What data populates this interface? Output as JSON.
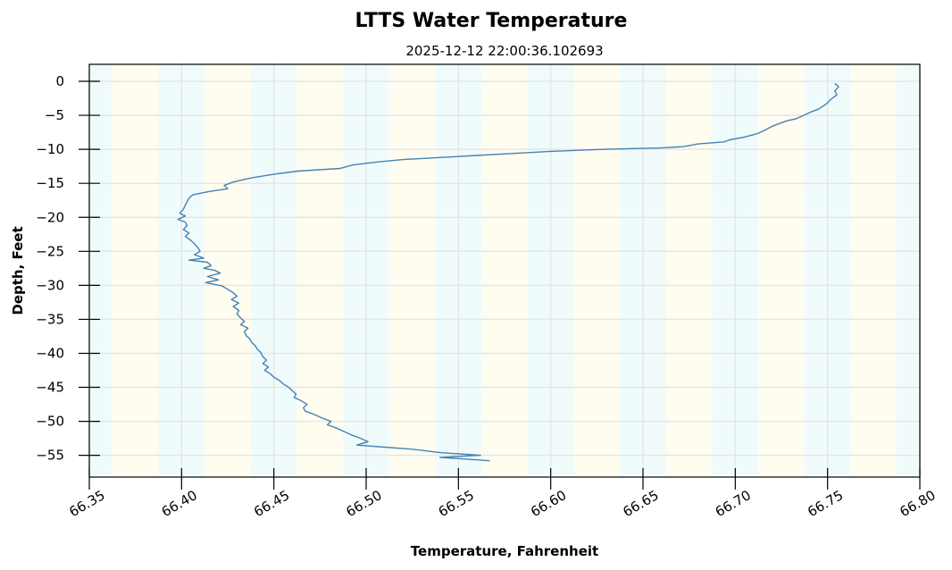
{
  "chart_data": {
    "type": "line",
    "title": "LTTS Water Temperature",
    "subtitle": "2025-12-12 22:00:36.102693",
    "xlabel": "Temperature, Fahrenheit",
    "ylabel": "Depth, Feet",
    "xlim": [
      66.35,
      66.8
    ],
    "ylim": [
      -58.2,
      2.5
    ],
    "xticks": [
      66.35,
      66.4,
      66.45,
      66.5,
      66.55,
      66.6,
      66.65,
      66.7,
      66.75,
      66.8
    ],
    "xtick_labels": [
      "66.35",
      "66.40",
      "66.45",
      "66.50",
      "66.55",
      "66.60",
      "66.65",
      "66.70",
      "66.75",
      "66.80"
    ],
    "yticks": [
      0,
      -5,
      -10,
      -15,
      -20,
      -25,
      -30,
      -35,
      -40,
      -45,
      -50,
      -55
    ],
    "ytick_labels": [
      "0",
      "−5",
      "−10",
      "−15",
      "−20",
      "−25",
      "−30",
      "−35",
      "−40",
      "−45",
      "−50",
      "−55"
    ],
    "grid": true,
    "background_bands": {
      "band_width": 0.025,
      "start": 66.3375,
      "colors": [
        "#f0fcfc",
        "#fffdf0"
      ]
    },
    "series": [
      {
        "name": "Water Temperature",
        "color": "#4682b4",
        "points": [
          [
            66.754,
            -0.3
          ],
          [
            66.756,
            -0.8
          ],
          [
            66.754,
            -1.4
          ],
          [
            66.755,
            -2.0
          ],
          [
            66.752,
            -2.6
          ],
          [
            66.749,
            -3.4
          ],
          [
            66.745,
            -4.1
          ],
          [
            66.741,
            -4.5
          ],
          [
            66.737,
            -5.0
          ],
          [
            66.733,
            -5.5
          ],
          [
            66.728,
            -5.8
          ],
          [
            66.724,
            -6.2
          ],
          [
            66.72,
            -6.6
          ],
          [
            66.716,
            -7.2
          ],
          [
            66.712,
            -7.7
          ],
          [
            66.705,
            -8.2
          ],
          [
            66.697,
            -8.6
          ],
          [
            66.694,
            -8.9
          ],
          [
            66.68,
            -9.2
          ],
          [
            66.672,
            -9.6
          ],
          [
            66.66,
            -9.8
          ],
          [
            66.63,
            -10.0
          ],
          [
            66.6,
            -10.3
          ],
          [
            66.58,
            -10.6
          ],
          [
            66.56,
            -10.9
          ],
          [
            66.54,
            -11.2
          ],
          [
            66.52,
            -11.5
          ],
          [
            66.505,
            -11.9
          ],
          [
            66.493,
            -12.3
          ],
          [
            66.486,
            -12.8
          ],
          [
            66.463,
            -13.2
          ],
          [
            66.449,
            -13.7
          ],
          [
            66.438,
            -14.2
          ],
          [
            66.428,
            -14.8
          ],
          [
            66.423,
            -15.3
          ],
          [
            66.425,
            -15.8
          ],
          [
            66.415,
            -16.2
          ],
          [
            66.406,
            -16.7
          ],
          [
            66.404,
            -17.2
          ],
          [
            66.403,
            -17.7
          ],
          [
            66.402,
            -18.2
          ],
          [
            66.401,
            -18.8
          ],
          [
            66.399,
            -19.4
          ],
          [
            66.402,
            -19.8
          ],
          [
            66.398,
            -20.3
          ],
          [
            66.402,
            -20.7
          ],
          [
            66.403,
            -21.2
          ],
          [
            66.401,
            -21.8
          ],
          [
            66.404,
            -22.3
          ],
          [
            66.402,
            -22.8
          ],
          [
            66.405,
            -23.4
          ],
          [
            66.407,
            -23.9
          ],
          [
            66.409,
            -24.5
          ],
          [
            66.41,
            -25.0
          ],
          [
            66.407,
            -25.5
          ],
          [
            66.412,
            -26.0
          ],
          [
            66.404,
            -26.3
          ],
          [
            66.414,
            -26.6
          ],
          [
            66.416,
            -27.1
          ],
          [
            66.412,
            -27.5
          ],
          [
            66.418,
            -27.8
          ],
          [
            66.421,
            -28.2
          ],
          [
            66.414,
            -28.7
          ],
          [
            66.42,
            -29.2
          ],
          [
            66.413,
            -29.6
          ],
          [
            66.422,
            -30.1
          ],
          [
            66.425,
            -30.6
          ],
          [
            66.428,
            -31.1
          ],
          [
            66.43,
            -31.6
          ],
          [
            66.427,
            -32.1
          ],
          [
            66.431,
            -32.6
          ],
          [
            66.428,
            -33.1
          ],
          [
            66.431,
            -33.7
          ],
          [
            66.43,
            -34.2
          ],
          [
            66.432,
            -34.8
          ],
          [
            66.434,
            -35.3
          ],
          [
            66.432,
            -35.8
          ],
          [
            66.436,
            -36.3
          ],
          [
            66.434,
            -36.8
          ],
          [
            66.435,
            -37.4
          ],
          [
            66.437,
            -37.9
          ],
          [
            66.438,
            -38.4
          ],
          [
            66.44,
            -38.9
          ],
          [
            66.441,
            -39.4
          ],
          [
            66.443,
            -39.9
          ],
          [
            66.444,
            -40.5
          ],
          [
            66.446,
            -41.0
          ],
          [
            66.444,
            -41.5
          ],
          [
            66.447,
            -42.0
          ],
          [
            66.445,
            -42.5
          ],
          [
            66.448,
            -43.0
          ],
          [
            66.45,
            -43.5
          ],
          [
            66.453,
            -44.0
          ],
          [
            66.455,
            -44.5
          ],
          [
            66.458,
            -45.0
          ],
          [
            66.46,
            -45.5
          ],
          [
            66.462,
            -46.0
          ],
          [
            66.461,
            -46.5
          ],
          [
            66.465,
            -47.0
          ],
          [
            66.468,
            -47.5
          ],
          [
            66.466,
            -48.0
          ],
          [
            66.467,
            -48.5
          ],
          [
            66.472,
            -49.0
          ],
          [
            66.476,
            -49.5
          ],
          [
            66.481,
            -50.0
          ],
          [
            66.479,
            -50.5
          ],
          [
            66.484,
            -51.0
          ],
          [
            66.488,
            -51.5
          ],
          [
            66.492,
            -52.0
          ],
          [
            66.497,
            -52.5
          ],
          [
            66.501,
            -53.0
          ],
          [
            66.495,
            -53.5
          ],
          [
            66.51,
            -53.8
          ],
          [
            66.525,
            -54.1
          ],
          [
            66.54,
            -54.6
          ],
          [
            66.562,
            -55.0
          ],
          [
            66.54,
            -55.3
          ],
          [
            66.567,
            -55.8
          ]
        ]
      }
    ]
  }
}
